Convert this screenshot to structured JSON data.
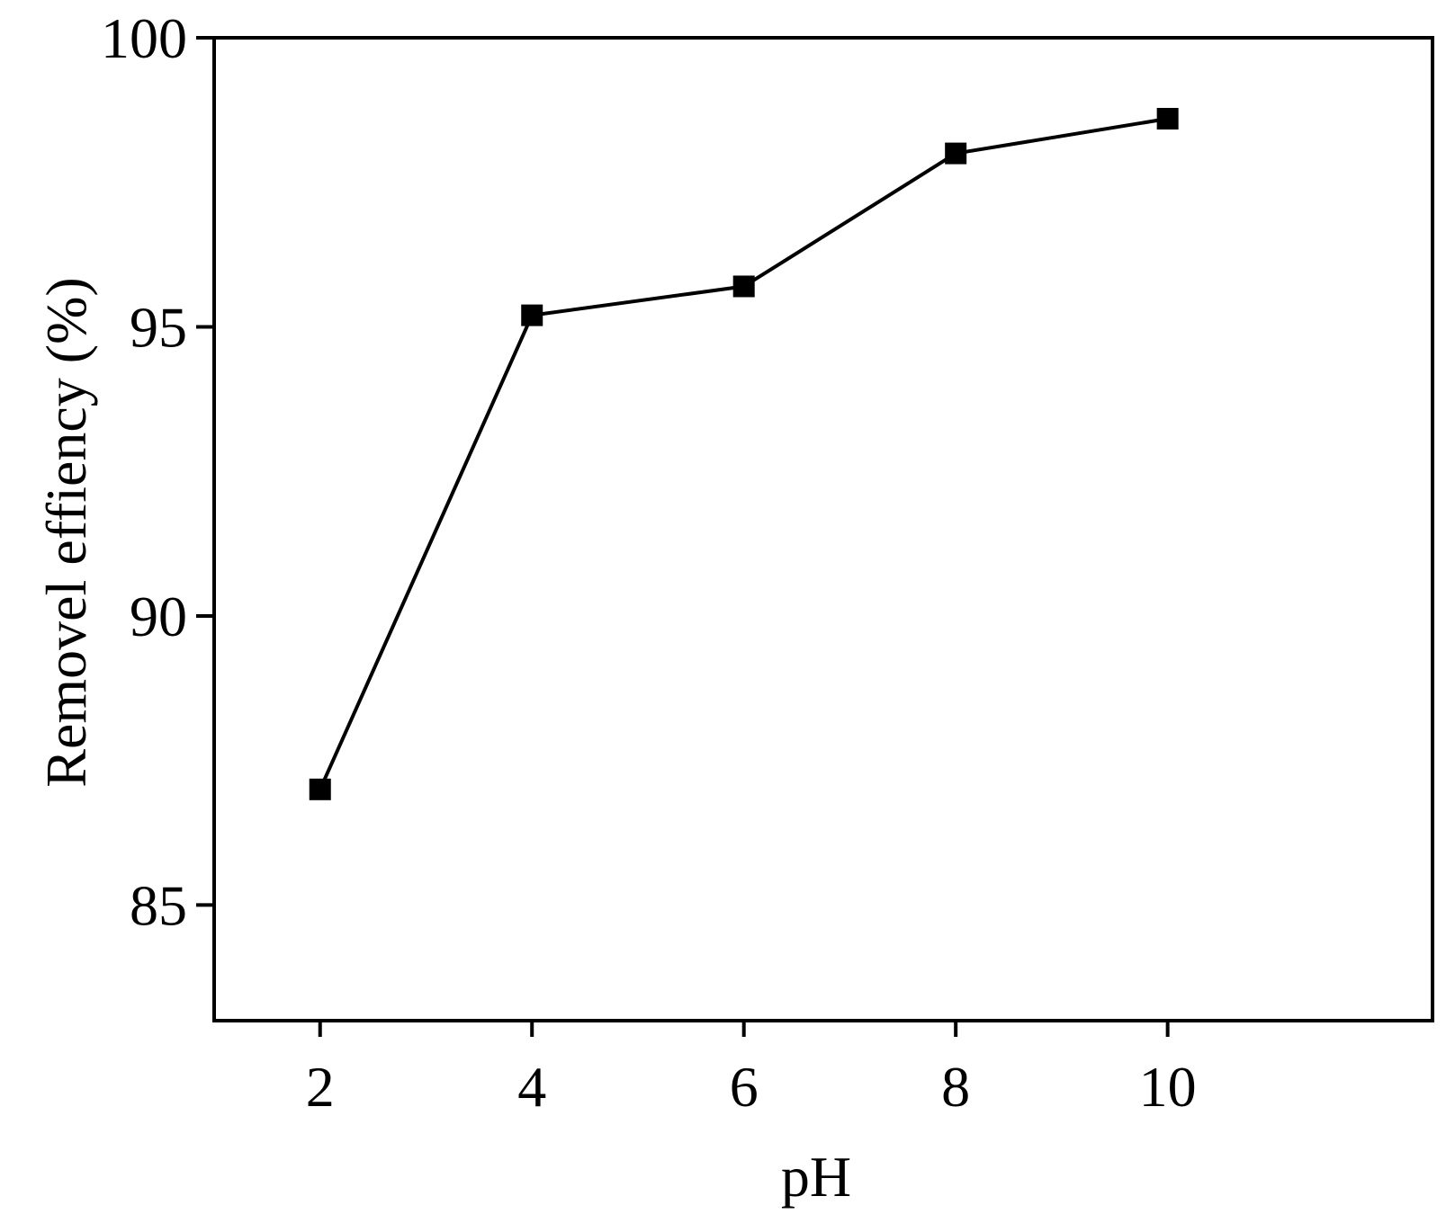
{
  "chart_data": {
    "type": "line",
    "title": "",
    "xlabel": "pH",
    "ylabel": "Removel effiency (%)",
    "xlim": [
      1,
      12.5
    ],
    "ylim": [
      83,
      100
    ],
    "x_ticks": [
      2,
      4,
      6,
      8,
      10
    ],
    "y_ticks": [
      85,
      90,
      95,
      100
    ],
    "grid": false,
    "legend": "none",
    "marker": "square",
    "colors": {
      "line": "#000000",
      "marker": "#000000",
      "axes": "#000000"
    },
    "series": [
      {
        "x": [
          2,
          4,
          6,
          8,
          10
        ],
        "y": [
          87.0,
          95.2,
          95.7,
          98.0,
          98.6
        ]
      }
    ]
  }
}
